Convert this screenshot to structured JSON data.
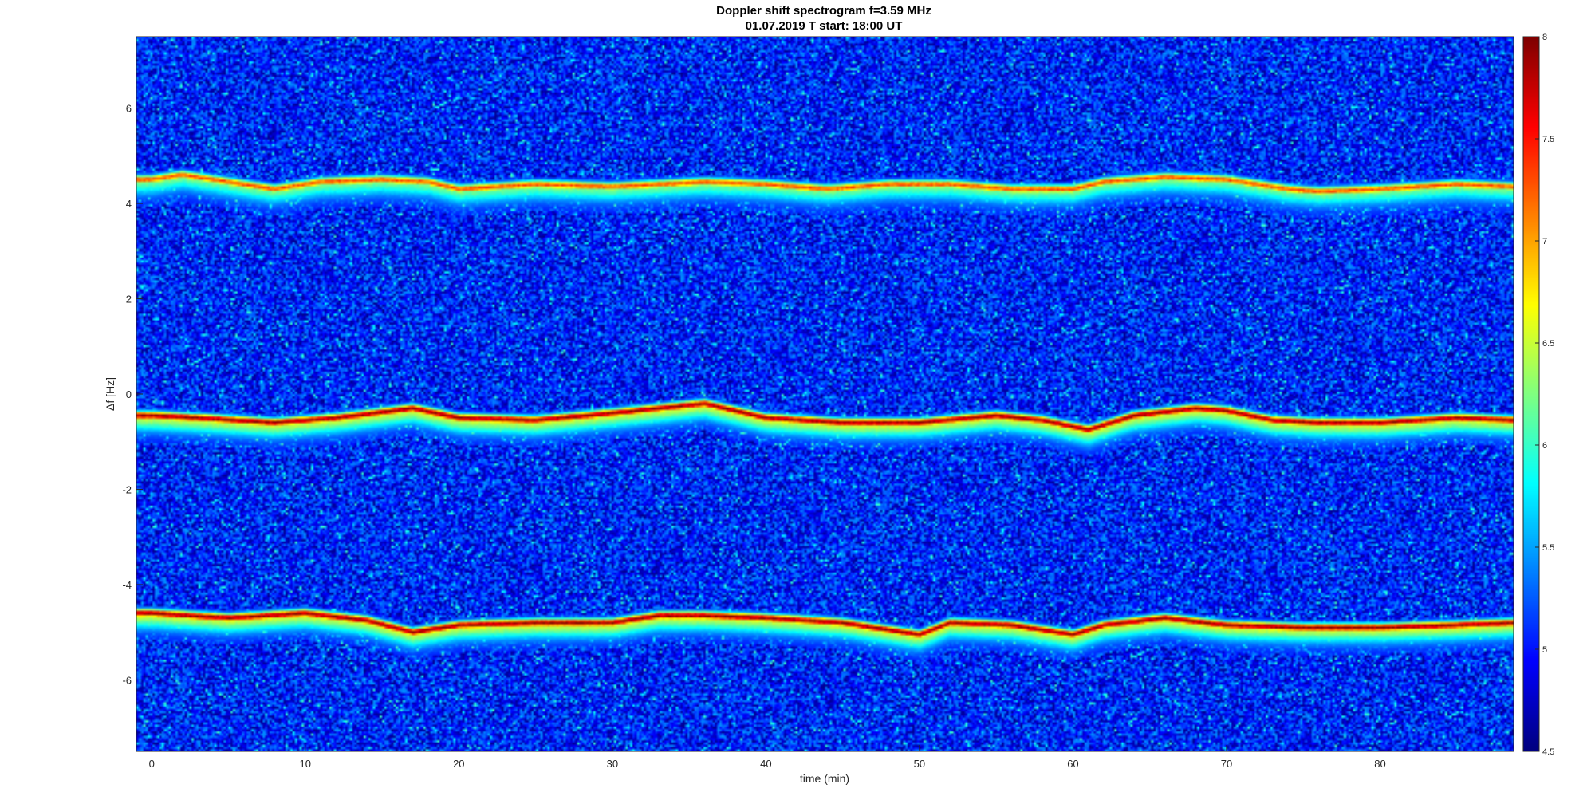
{
  "chart_data": {
    "type": "heatmap",
    "title": "Doppler shift spectrogram f=3.59 MHz",
    "subtitle": "01.07.2019   T start: 18:00 UT",
    "xlabel": "time (min)",
    "ylabel": "Δf [Hz]",
    "xlim": [
      -1,
      88.7
    ],
    "ylim": [
      -7.5,
      7.5
    ],
    "xticks": [
      0,
      10,
      20,
      30,
      40,
      50,
      60,
      70,
      80
    ],
    "yticks": [
      -6,
      -4,
      -2,
      0,
      2,
      4,
      6
    ],
    "colormap": "jet",
    "colorbar": {
      "range": [
        4.5,
        8
      ],
      "ticks": [
        4.5,
        5,
        5.5,
        6,
        6.5,
        7,
        7.5,
        8
      ]
    },
    "background_level": 5.0,
    "traces": [
      {
        "label": "upper trace",
        "intensity": 7.3,
        "time": [
          0,
          2,
          5,
          8,
          11,
          15,
          18,
          20,
          25,
          30,
          33,
          36,
          40,
          44,
          48,
          52,
          56,
          60,
          62,
          66,
          70,
          74,
          76,
          80,
          85,
          88.7
        ],
        "freq": [
          4.5,
          4.6,
          4.45,
          4.3,
          4.45,
          4.5,
          4.45,
          4.3,
          4.4,
          4.35,
          4.4,
          4.45,
          4.4,
          4.3,
          4.4,
          4.4,
          4.3,
          4.3,
          4.45,
          4.55,
          4.5,
          4.3,
          4.25,
          4.3,
          4.4,
          4.35
        ]
      },
      {
        "label": "middle trace",
        "intensity": 7.9,
        "time": [
          0,
          3,
          8,
          12,
          17,
          20,
          25,
          30,
          33,
          36,
          40,
          45,
          50,
          55,
          58,
          61,
          64,
          68,
          70,
          73,
          76,
          80,
          85,
          88.7
        ],
        "freq": [
          -0.45,
          -0.5,
          -0.6,
          -0.5,
          -0.3,
          -0.5,
          -0.55,
          -0.4,
          -0.3,
          -0.2,
          -0.5,
          -0.6,
          -0.6,
          -0.45,
          -0.55,
          -0.75,
          -0.45,
          -0.3,
          -0.35,
          -0.55,
          -0.6,
          -0.6,
          -0.5,
          -0.55
        ]
      },
      {
        "label": "lower trace",
        "intensity": 7.9,
        "time": [
          0,
          5,
          10,
          14,
          17,
          20,
          25,
          30,
          33,
          36,
          40,
          45,
          48,
          50,
          52,
          56,
          60,
          62,
          66,
          70,
          75,
          80,
          85,
          88.7
        ],
        "freq": [
          -4.6,
          -4.7,
          -4.6,
          -4.75,
          -5.0,
          -4.85,
          -4.8,
          -4.8,
          -4.65,
          -4.65,
          -4.7,
          -4.8,
          -4.95,
          -5.05,
          -4.8,
          -4.85,
          -5.05,
          -4.85,
          -4.7,
          -4.85,
          -4.9,
          -4.9,
          -4.85,
          -4.8
        ]
      }
    ]
  }
}
